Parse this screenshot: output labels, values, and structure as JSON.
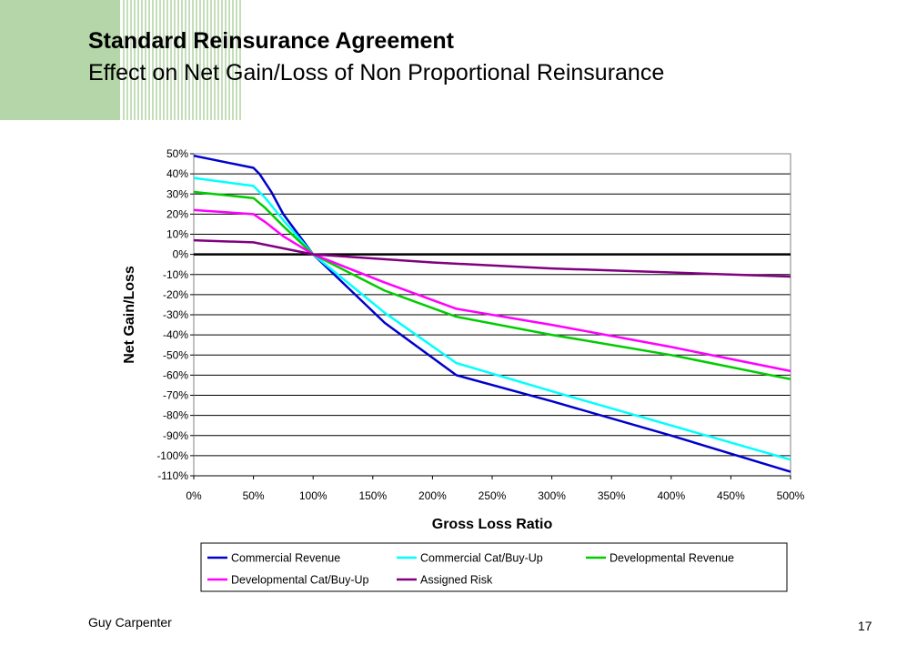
{
  "slide": {
    "title": "Standard Reinsurance Agreement",
    "subtitle": "Effect on Net Gain/Loss of Non Proportional Reinsurance",
    "footer_left": "Guy Carpenter",
    "page_number": "17",
    "accent_color": "#b5d6a8"
  },
  "chart_data": {
    "type": "line",
    "title": "",
    "xlabel": "Gross Loss Ratio",
    "ylabel": "Net Gain/Loss",
    "xlim": [
      0,
      500
    ],
    "ylim": [
      -110,
      50
    ],
    "x_ticks": [
      0,
      50,
      100,
      150,
      200,
      250,
      300,
      350,
      400,
      450,
      500
    ],
    "x_tick_labels": [
      "0%",
      "50%",
      "100%",
      "150%",
      "200%",
      "250%",
      "300%",
      "350%",
      "400%",
      "450%",
      "500%"
    ],
    "y_ticks": [
      50,
      40,
      30,
      20,
      10,
      0,
      -10,
      -20,
      -30,
      -40,
      -50,
      -60,
      -70,
      -80,
      -90,
      -100,
      -110
    ],
    "y_tick_labels": [
      "50%",
      "40%",
      "30%",
      "20%",
      "10%",
      "0%",
      "-10%",
      "-20%",
      "-30%",
      "-40%",
      "-50%",
      "-60%",
      "-70%",
      "-80%",
      "-90%",
      "-100%",
      "-110%"
    ],
    "grid": true,
    "legend_position": "bottom",
    "series": [
      {
        "name": "Commercial Revenue",
        "color": "#0000cc",
        "x": [
          0,
          50,
          55,
          65,
          75,
          100,
          160,
          220,
          300,
          400,
          500
        ],
        "y": [
          49,
          43,
          40,
          31,
          20,
          0,
          -34,
          -60,
          -73,
          -90,
          -108
        ]
      },
      {
        "name": "Commercial Cat/Buy-Up",
        "color": "#00ffff",
        "x": [
          0,
          50,
          60,
          75,
          100,
          160,
          220,
          300,
          400,
          500
        ],
        "y": [
          38,
          34,
          28,
          17,
          0,
          -29,
          -54,
          -68,
          -85,
          -102
        ]
      },
      {
        "name": "Developmental Revenue",
        "color": "#00cc00",
        "x": [
          0,
          50,
          60,
          75,
          100,
          160,
          220,
          300,
          400,
          500
        ],
        "y": [
          31,
          28,
          23,
          14,
          0,
          -18,
          -31,
          -40,
          -50,
          -62
        ]
      },
      {
        "name": "Developmental Cat/Buy-Up",
        "color": "#ff00ff",
        "x": [
          0,
          50,
          60,
          75,
          100,
          160,
          220,
          300,
          400,
          500
        ],
        "y": [
          22,
          20,
          16,
          9,
          0,
          -14,
          -27,
          -35,
          -46,
          -58
        ]
      },
      {
        "name": "Assigned Risk",
        "color": "#800080",
        "x": [
          0,
          50,
          100,
          200,
          300,
          400,
          500
        ],
        "y": [
          7,
          6,
          0,
          -4,
          -7,
          -9,
          -11
        ]
      }
    ]
  }
}
